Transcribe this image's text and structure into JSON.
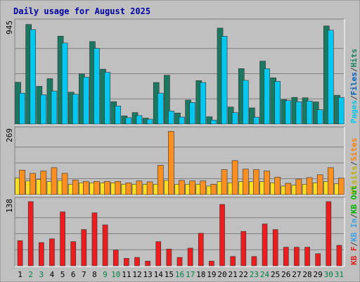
{
  "chart_data": {
    "type": "bar",
    "title": "Daily usage for August 2025",
    "categories": [
      "1",
      "2",
      "3",
      "4",
      "5",
      "6",
      "7",
      "8",
      "9",
      "10",
      "11",
      "12",
      "13",
      "14",
      "15",
      "16",
      "17",
      "18",
      "19",
      "20",
      "21",
      "22",
      "23",
      "24",
      "25",
      "26",
      "27",
      "28",
      "29",
      "30",
      "31"
    ],
    "weekend_days": [
      2,
      3,
      9,
      10,
      16,
      17,
      23,
      24,
      30,
      31
    ],
    "panels": [
      {
        "id": "hits",
        "max_label": "945",
        "ymax": 945,
        "legend": [
          {
            "label": "Pages",
            "color": "#00c8e8"
          },
          {
            "label": "/",
            "color": "#404040"
          },
          {
            "label": "Files",
            "color": "#0060c0"
          },
          {
            "label": "/",
            "color": "#404040"
          },
          {
            "label": "Hits",
            "color": "#1a8060"
          }
        ],
        "series": [
          {
            "name": "Hits",
            "color": "#1a7860",
            "values": [
              392,
              934,
              354,
              426,
              824,
              299,
              470,
              774,
              515,
              210,
              77,
              108,
              56,
              390,
              458,
              104,
              225,
              408,
              69,
              900,
              160,
              520,
              152,
              590,
              434,
              230,
              250,
              247,
              208,
              920,
              270
            ]
          },
          {
            "name": "Files",
            "color": "#00c8f0",
            "values": [
              290,
              886,
              275,
              310,
              760,
              280,
              440,
              710,
              485,
              170,
              60,
              80,
              46,
              290,
              123,
              66,
              202,
              390,
              37,
              824,
              108,
              410,
              65,
              520,
              400,
              220,
              210,
              216,
              135,
              880,
              250
            ]
          }
        ]
      },
      {
        "id": "sites",
        "max_label": "269",
        "ymax": 269,
        "legend": [
          {
            "label": "Visits",
            "color": "#c0b000"
          },
          {
            "label": "/",
            "color": "#404040"
          },
          {
            "label": "Sites",
            "color": "#ff8000"
          }
        ],
        "series": [
          {
            "name": "Visits",
            "color": "#ffe020",
            "values": [
              70,
              58,
              64,
              55,
              60,
              44,
              50,
              50,
              50,
              50,
              44,
              44,
              44,
              44,
              60,
              44,
              44,
              44,
              36,
              55,
              50,
              55,
              55,
              55,
              50,
              36,
              40,
              44,
              50,
              55,
              46
            ]
          },
          {
            "name": "Sites",
            "color": "#ff9020",
            "values": [
              104,
              90,
              100,
              114,
              90,
              62,
              56,
              56,
              56,
              56,
              50,
              58,
              54,
              124,
              268,
              60,
              58,
              58,
              44,
              106,
              144,
              108,
              106,
              100,
              74,
              48,
              66,
              72,
              84,
              114,
              70
            ]
          }
        ]
      },
      {
        "id": "kbytes",
        "max_label": "138",
        "ymax": 138,
        "legend": [
          {
            "label": "KB F",
            "color": "#e02020"
          },
          {
            "label": "/",
            "color": "#404040"
          },
          {
            "label": "KB In",
            "color": "#40a0e0"
          },
          {
            "label": "/",
            "color": "#404040"
          },
          {
            "label": "KB Out",
            "color": "#00b000"
          }
        ],
        "series": [
          {
            "name": "KB F",
            "color": "#ee1c1c",
            "values": [
              54,
              138,
              50,
              58,
              116,
              52,
              78,
              114,
              88,
              34,
              16,
              18,
              10,
              52,
              36,
              18,
              38,
              70,
              10,
              132,
              20,
              74,
              20,
              90,
              78,
              40,
              40,
              40,
              26,
              138,
              44
            ]
          }
        ]
      }
    ]
  }
}
